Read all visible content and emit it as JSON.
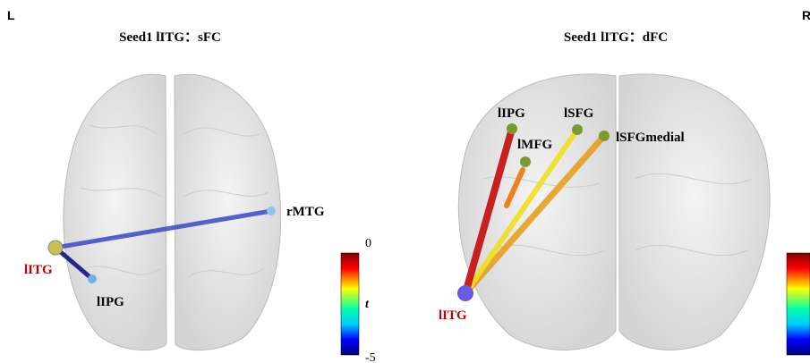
{
  "corner_labels": {
    "left": "L",
    "right": "R"
  },
  "panels": [
    {
      "title": "Seed1 lITG：sFC",
      "nodes": [
        {
          "label": "rMTG"
        },
        {
          "label": "lITG"
        },
        {
          "label": "lIPG"
        }
      ],
      "colorbar": {
        "max": "0",
        "label": "t",
        "min": "-5"
      }
    },
    {
      "title": "Seed1 lITG：dFC",
      "nodes": [
        {
          "label": "lIPG"
        },
        {
          "label": "lSFG"
        },
        {
          "label": "lMFG"
        },
        {
          "label": "lSFGmedial"
        },
        {
          "label": "lITG"
        }
      ]
    }
  ]
}
